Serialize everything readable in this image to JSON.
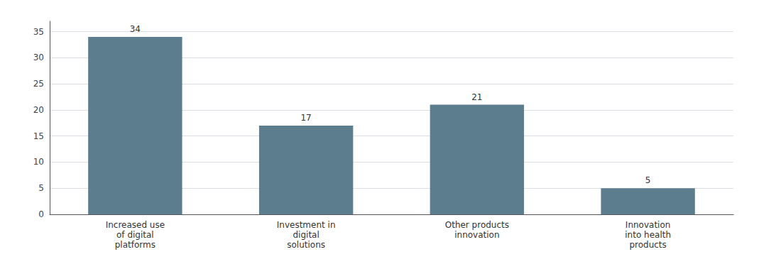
{
  "chart_data": {
    "type": "bar",
    "categories": [
      "Increased use\nof digital\nplatforms",
      "Investment in\ndigital\nsolutions",
      "Other products\ninnovation",
      "Innovation\ninto health\nproducts"
    ],
    "values": [
      34,
      17,
      21,
      5
    ],
    "color": "#5b7d8e",
    "ylim": [
      0,
      37
    ],
    "yticks": [
      0,
      5,
      10,
      15,
      20,
      25,
      30,
      35
    ],
    "grid": true,
    "data_labels": true
  }
}
